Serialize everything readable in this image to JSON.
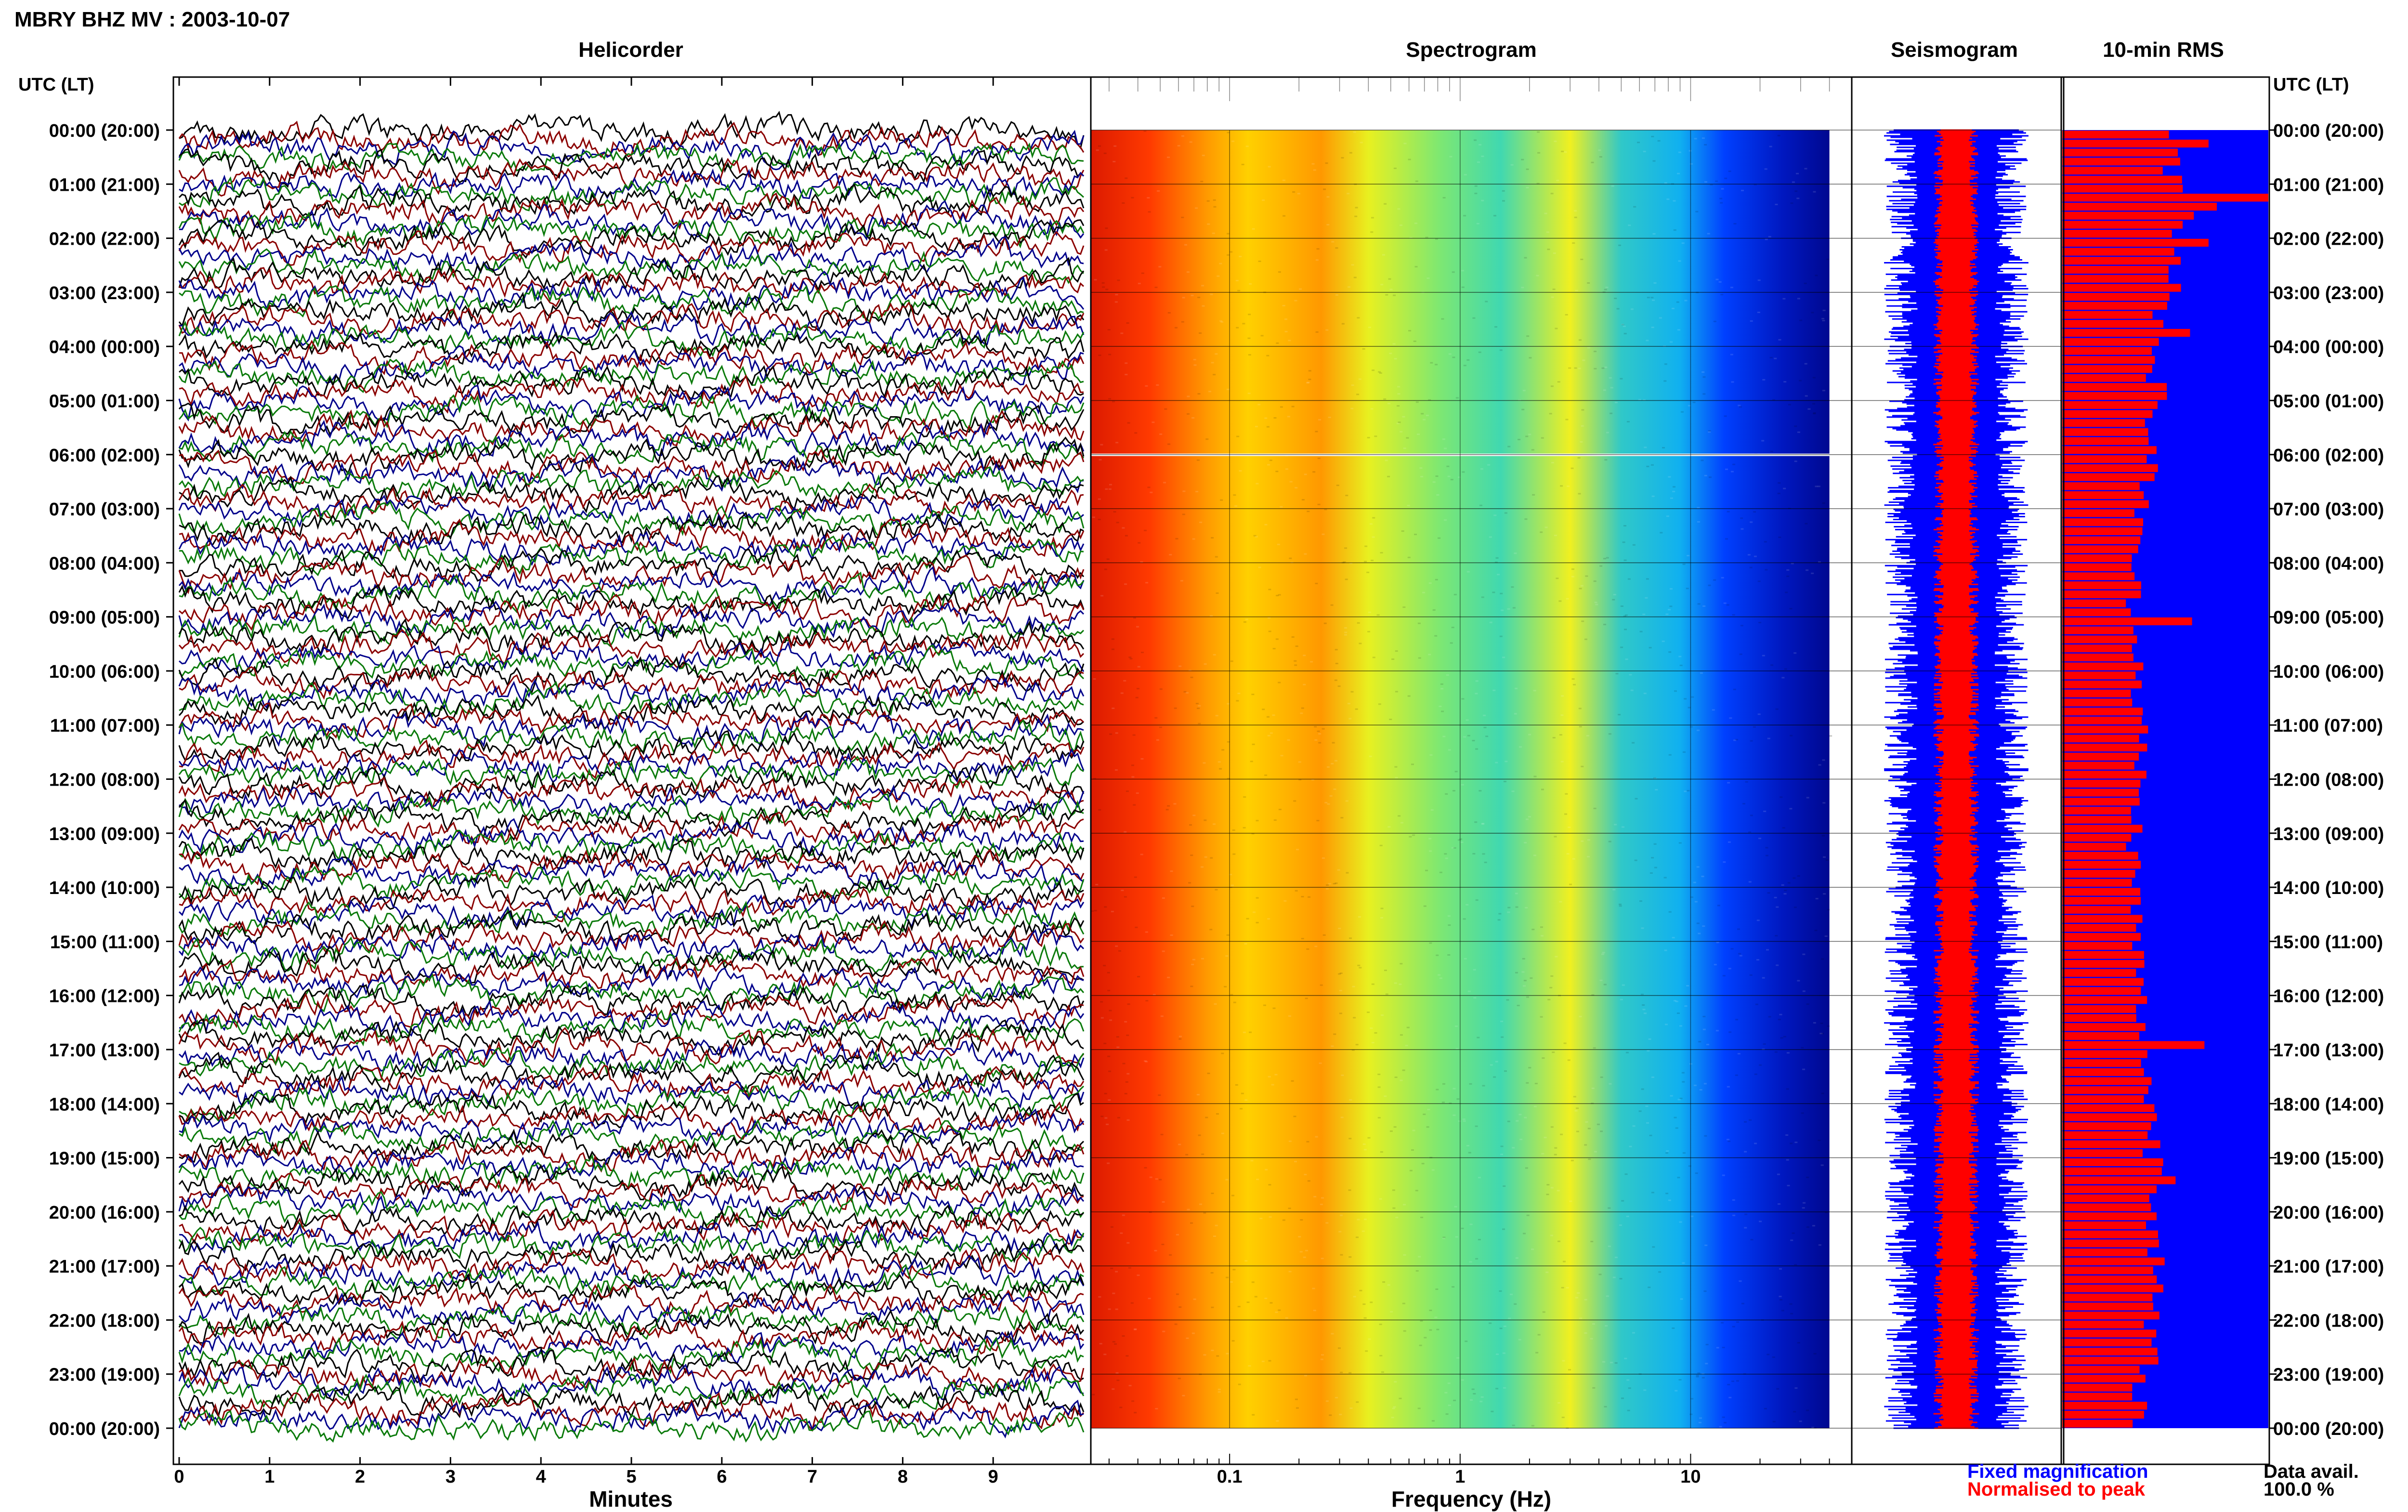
{
  "header": {
    "title": "MBRY BHZ MV : 2003-10-07"
  },
  "colors": {
    "trace_cycle": [
      "#000000",
      "#8b0000",
      "#00008b",
      "#0a7a0a"
    ],
    "fixed_magnification": "#0000ff",
    "normalised_to_peak": "#ff0000"
  },
  "chart_data": [
    {
      "type": "line",
      "title": "Helicorder",
      "xlabel": "Minutes",
      "xlim": [
        0,
        10
      ],
      "x_ticks": [
        "0",
        "1",
        "2",
        "3",
        "4",
        "5",
        "6",
        "7",
        "8",
        "9"
      ],
      "y_axis_title": "UTC (LT)",
      "y_ticks": [
        "00:00 (20:00)",
        "01:00 (21:00)",
        "02:00 (22:00)",
        "03:00 (23:00)",
        "04:00 (00:00)",
        "05:00 (01:00)",
        "06:00 (02:00)",
        "07:00 (03:00)",
        "08:00 (04:00)",
        "09:00 (05:00)",
        "10:00 (06:00)",
        "11:00 (07:00)",
        "12:00 (08:00)",
        "13:00 (09:00)",
        "14:00 (10:00)",
        "15:00 (11:00)",
        "16:00 (12:00)",
        "17:00 (13:00)",
        "18:00 (14:00)",
        "19:00 (15:00)",
        "20:00 (16:00)",
        "21:00 (17:00)",
        "22:00 (18:00)",
        "23:00 (19:00)",
        "00:00 (20:00)"
      ],
      "trace_interval_minutes": 10,
      "trace_count": 144
    },
    {
      "type": "heatmap",
      "title": "Spectrogram",
      "xlabel": "Frequency (Hz)",
      "x_scale": "log",
      "xlim": [
        0.025,
        50
      ],
      "x_ticks": [
        "0.1",
        "1",
        "10"
      ],
      "data_extent_hz": [
        0.025,
        40
      ],
      "data_gap_utc": "06:00",
      "color_gradient_by_frequency": [
        {
          "hz": 0.025,
          "color": "#dc1a00"
        },
        {
          "hz": 0.045,
          "color": "#ff3a00"
        },
        {
          "hz": 0.08,
          "color": "#ff9a00"
        },
        {
          "hz": 0.12,
          "color": "#ffd000"
        },
        {
          "hz": 0.25,
          "color": "#ff9800"
        },
        {
          "hz": 0.4,
          "color": "#e8f020"
        },
        {
          "hz": 0.8,
          "color": "#80e870"
        },
        {
          "hz": 1.5,
          "color": "#40d8b0"
        },
        {
          "hz": 3,
          "color": "#f0f020"
        },
        {
          "hz": 5,
          "color": "#30c8c8"
        },
        {
          "hz": 9,
          "color": "#10b0f0"
        },
        {
          "hz": 14,
          "color": "#0040ff"
        },
        {
          "hz": 25,
          "color": "#0018c0"
        },
        {
          "hz": 40,
          "color": "#000890"
        }
      ]
    },
    {
      "type": "line",
      "title": "Seismogram",
      "series": [
        {
          "name": "Fixed magnification",
          "color": "#0000ff"
        },
        {
          "name": "Normalised to peak",
          "color": "#ff0000"
        }
      ]
    },
    {
      "type": "bar",
      "title": "10-min RMS",
      "bin_minutes": 10,
      "fixed_magnification_level": 1.0,
      "normalised_rms_by_hour": [
        0.55,
        0.6,
        0.56,
        0.48,
        0.46,
        0.44,
        0.42,
        0.36,
        0.35,
        0.38,
        0.37,
        0.38,
        0.36,
        0.35,
        0.36,
        0.37,
        0.38,
        0.42,
        0.44,
        0.48,
        0.46,
        0.44,
        0.42,
        0.38
      ],
      "peak_bins": [
        {
          "utc": "00:10",
          "value": 0.71
        },
        {
          "utc": "01:10",
          "value": 1.0
        },
        {
          "utc": "01:20",
          "value": 0.75
        },
        {
          "utc": "02:00",
          "value": 0.71
        },
        {
          "utc": "03:40",
          "value": 0.62
        },
        {
          "utc": "09:00",
          "value": 0.63
        },
        {
          "utc": "16:50",
          "value": 0.69
        },
        {
          "utc": "19:20",
          "value": 0.55
        }
      ]
    }
  ],
  "legend": {
    "fixed_magnification": "Fixed magnification",
    "normalised_to_peak": "Normalised to peak"
  },
  "availability": {
    "label": "Data avail.",
    "value": "100.0 %"
  }
}
